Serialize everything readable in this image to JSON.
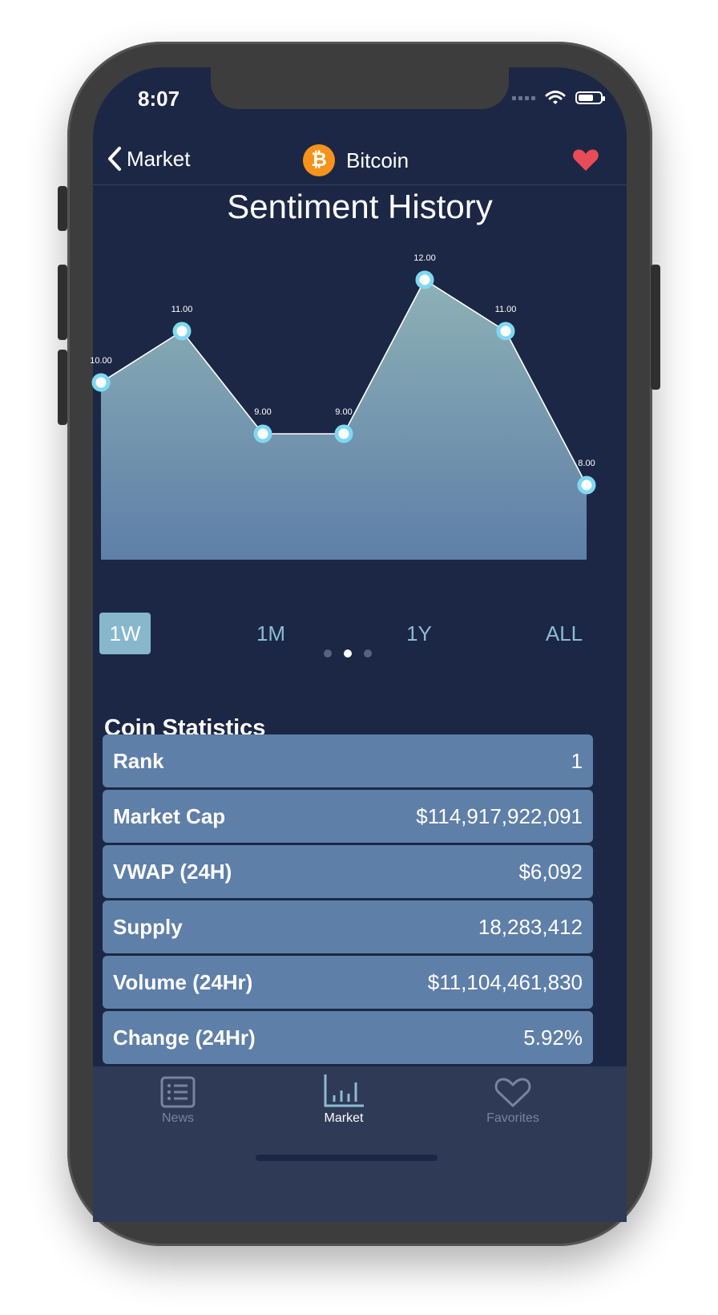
{
  "status": {
    "time": "8:07"
  },
  "nav": {
    "back_label": "Market",
    "coin_name": "Bitcoin",
    "coin_symbol": "₿"
  },
  "chart_title": "Sentiment History",
  "chart_data": {
    "type": "area",
    "title": "Sentiment History",
    "values": [
      10,
      11,
      9,
      9,
      12,
      11,
      8
    ],
    "value_labels": [
      "10.00",
      "11.00",
      "9.00",
      "9.00",
      "12.00",
      "11.00",
      "8.00"
    ],
    "ylim": [
      7,
      12
    ],
    "colors": {
      "fill_top": "#8db1b6",
      "fill_bottom": "#5e7fa8",
      "line": "#ffffff",
      "marker": "#7fd8f2"
    }
  },
  "ranges": [
    "1W",
    "1M",
    "1Y",
    "ALL"
  ],
  "active_range": "1W",
  "statistics": {
    "title": "Coin Statistics",
    "rows": [
      {
        "label": "Rank",
        "value": "1"
      },
      {
        "label": "Market Cap",
        "value": "$114,917,922,091"
      },
      {
        "label": "VWAP (24H)",
        "value": "$6,092"
      },
      {
        "label": "Supply",
        "value": "18,283,412"
      },
      {
        "label": "Volume (24Hr)",
        "value": "$11,104,461,830"
      },
      {
        "label": "Change (24Hr)",
        "value": "5.92%"
      }
    ]
  },
  "tabs": [
    {
      "label": "News",
      "icon": "list-icon"
    },
    {
      "label": "Market",
      "icon": "bar-chart-icon"
    },
    {
      "label": "Favorites",
      "icon": "heart-outline-icon"
    }
  ],
  "colors": {
    "accent": "#f7931a",
    "heart": "#e94b57",
    "background": "#1c2745"
  }
}
